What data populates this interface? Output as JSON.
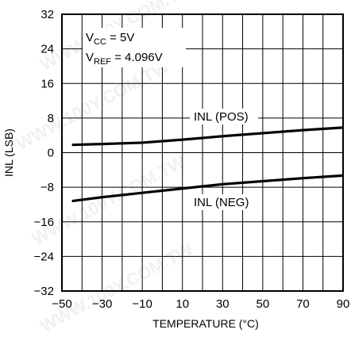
{
  "watermark": "WWW.100Y.COM.TW",
  "chart_data": {
    "type": "line",
    "xlabel": "TEMPERATURE (°C)",
    "ylabel": "INL (LSB)",
    "xlim": [
      -50,
      90
    ],
    "ylim": [
      -32,
      32
    ],
    "x_ticks": [
      -50,
      -30,
      -10,
      10,
      30,
      50,
      70,
      90
    ],
    "y_ticks": [
      -32,
      -24,
      -16,
      -8,
      0,
      8,
      16,
      24,
      32
    ],
    "grid": true,
    "conditions": {
      "vcc_main": "V",
      "vcc_sub": "CC",
      "vcc_value": " = 5V",
      "vref_main": "V",
      "vref_sub": "REF",
      "vref_value": " = 4.096V"
    },
    "series": [
      {
        "name": "INL (POS)",
        "x": [
          -45,
          -30,
          -10,
          10,
          30,
          50,
          70,
          90
        ],
        "values": [
          1.8,
          2.0,
          2.3,
          3.0,
          3.8,
          4.5,
          5.2,
          5.8
        ]
      },
      {
        "name": "INL (NEG)",
        "x": [
          -45,
          -30,
          -10,
          10,
          30,
          50,
          70,
          90
        ],
        "values": [
          -11.2,
          -10.3,
          -9.3,
          -8.3,
          -7.3,
          -6.6,
          -5.9,
          -5.3
        ]
      }
    ]
  }
}
